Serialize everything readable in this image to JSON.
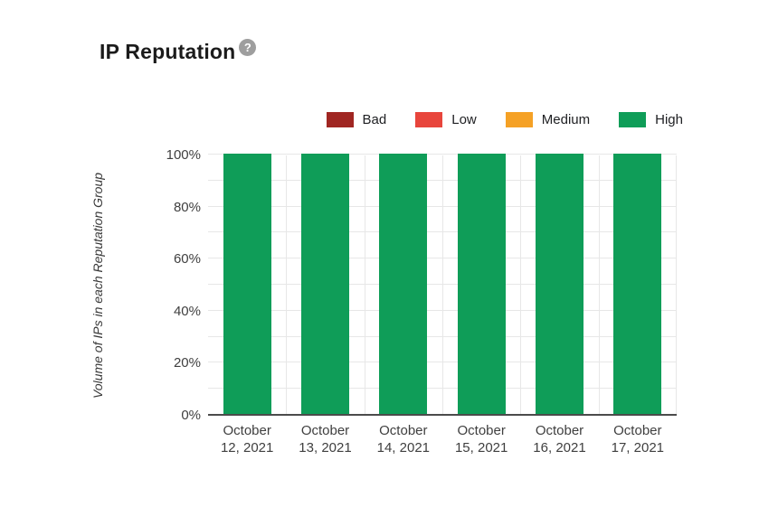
{
  "header": {
    "title": "IP Reputation",
    "help_icon_glyph": "?"
  },
  "legend": {
    "position": "top-right",
    "items": [
      {
        "label": "Bad",
        "color": "#A02622"
      },
      {
        "label": "Low",
        "color": "#E8453C"
      },
      {
        "label": "Medium",
        "color": "#F5A125"
      },
      {
        "label": "High",
        "color": "#0F9D58"
      }
    ]
  },
  "chart_data": {
    "type": "bar",
    "stacked": true,
    "title": "IP Reputation",
    "categories": [
      "October 12, 2021",
      "October 13, 2021",
      "October 14, 2021",
      "October 15, 2021",
      "October 16, 2021",
      "October 17, 2021"
    ],
    "series": [
      {
        "name": "Bad",
        "color": "#A02622",
        "values": [
          0,
          0,
          0,
          0,
          0,
          0
        ]
      },
      {
        "name": "Low",
        "color": "#E8453C",
        "values": [
          0,
          0,
          0,
          0,
          0,
          0
        ]
      },
      {
        "name": "Medium",
        "color": "#F5A125",
        "values": [
          0,
          0,
          0,
          0,
          0,
          0
        ]
      },
      {
        "name": "High",
        "color": "#0F9D58",
        "values": [
          100,
          100,
          100,
          100,
          100,
          100
        ]
      }
    ],
    "xlabel": "",
    "ylabel": "Volume of IPs in each Reputation Group",
    "y_ticks": [
      "0%",
      "20%",
      "40%",
      "60%",
      "80%",
      "100%"
    ],
    "ylim": [
      0,
      100
    ],
    "grid": {
      "horizontal_minor_step_percent": 10,
      "vertical_category_boundaries": true
    },
    "legend_position": "top-right"
  }
}
